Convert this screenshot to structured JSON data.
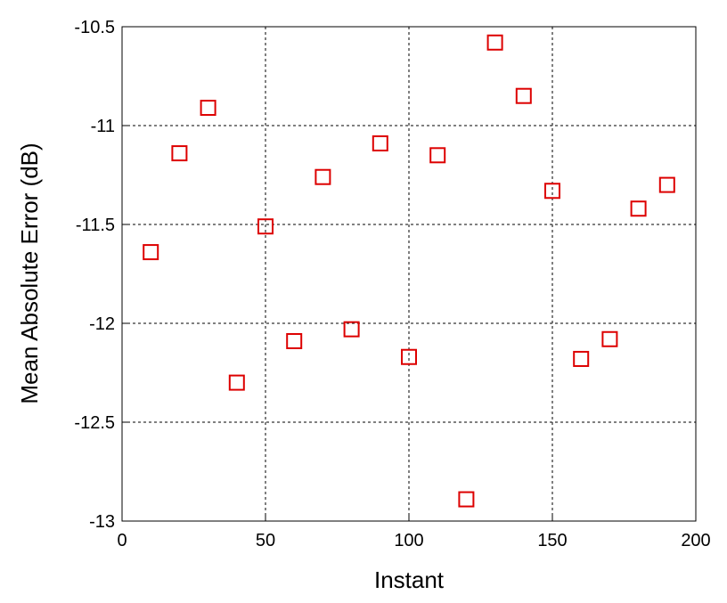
{
  "chart_data": {
    "type": "scatter",
    "xlabel": "Instant",
    "ylabel": "Mean Absolute Error (dB)",
    "series": [
      {
        "color": "#dd0000",
        "x": [
          10,
          20,
          30,
          40,
          50,
          60,
          70,
          80,
          90,
          100,
          110,
          120,
          130,
          140,
          150,
          160,
          170,
          180,
          190
        ],
        "values": [
          -11.64,
          -11.14,
          -10.91,
          -12.3,
          -11.51,
          -12.09,
          -11.26,
          -12.03,
          -11.09,
          -12.17,
          -11.15,
          -12.89,
          -10.58,
          -10.85,
          -11.33,
          -12.18,
          -12.08,
          -11.42,
          -11.3
        ]
      }
    ],
    "xlim": [
      0,
      200
    ],
    "xticks": [
      0,
      50,
      100,
      150,
      200
    ],
    "ylim": [
      -13,
      -10.5
    ],
    "yticks": [
      -13,
      -12.5,
      -12,
      -11.5,
      -11,
      -10.5
    ],
    "grid": true
  }
}
